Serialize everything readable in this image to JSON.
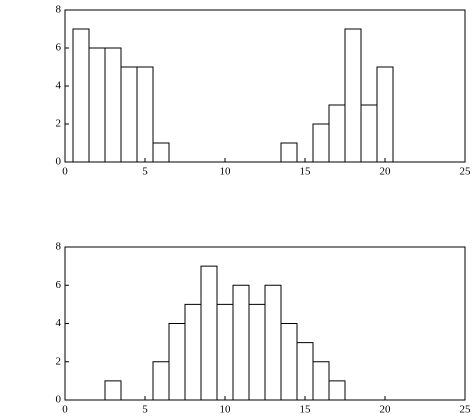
{
  "chart_data": [
    {
      "type": "histogram",
      "bins": [
        0.5,
        1.5,
        2.5,
        3.5,
        4.5,
        5.5,
        6.5,
        7.5,
        8.5,
        9.5,
        10.5,
        11.5,
        12.5,
        13.5,
        14.5,
        15.5,
        16.5,
        17.5,
        18.5,
        19.5,
        20.5
      ],
      "values": [
        7,
        6,
        6,
        5,
        5,
        1,
        0,
        0,
        0,
        0,
        0,
        0,
        0,
        1,
        0,
        2,
        3,
        7,
        3,
        5
      ],
      "color": "#ffffff",
      "xlim": [
        0,
        25
      ],
      "xticks": [
        0,
        5,
        10,
        15,
        20,
        25
      ],
      "ylim": [
        0,
        8
      ],
      "yticks": [
        0,
        2,
        4,
        6,
        8
      ]
    },
    {
      "type": "histogram",
      "bins": [
        2.5,
        3.5,
        4.5,
        5.5,
        6.5,
        7.5,
        8.5,
        9.5,
        10.5,
        11.5,
        12.5,
        13.5,
        14.5,
        15.5,
        16.5,
        17.5
      ],
      "values": [
        1,
        0,
        0,
        2,
        4,
        5,
        7,
        5,
        6,
        5,
        6,
        4,
        3,
        2,
        1
      ],
      "color": "#ffffff",
      "xlim": [
        0,
        25
      ],
      "xticks": [
        0,
        5,
        10,
        15,
        20,
        25
      ],
      "ylim": [
        0,
        8
      ],
      "yticks": [
        0,
        2,
        4,
        6,
        8
      ]
    }
  ]
}
